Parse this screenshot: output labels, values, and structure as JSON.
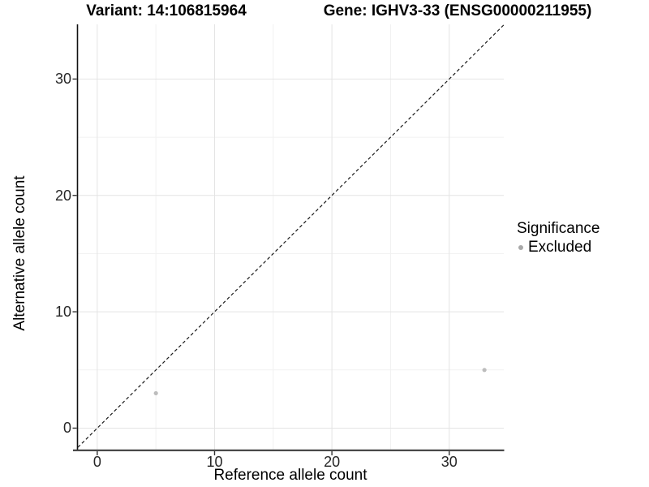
{
  "titles": {
    "left": "Variant: 14:106815964",
    "right": "Gene: IGHV3-33 (ENSG00000211955)"
  },
  "chart_data": {
    "type": "scatter",
    "xlabel": "Reference allele count",
    "ylabel": "Alternative allele count",
    "x_ticks": [
      0,
      10,
      20,
      30
    ],
    "y_ticks": [
      0,
      10,
      20,
      30
    ],
    "xlim": [
      -1.65,
      34.65
    ],
    "ylim": [
      -1.85,
      34.7
    ],
    "grid": "major+minor",
    "legend_position": "right-middle",
    "reference_line": {
      "kind": "identity_y_equals_x",
      "style": "dashed",
      "color": "#1a1a1a"
    },
    "series": [
      {
        "name": "Excluded",
        "color": "#bdbdbd",
        "points": [
          {
            "x": 5,
            "y": 3
          },
          {
            "x": 33,
            "y": 5
          }
        ]
      }
    ],
    "legend": {
      "title": "Significance",
      "items": [
        {
          "label": "Excluded",
          "key_color": "#a9a9a9"
        }
      ]
    }
  },
  "style": {
    "background": "#ffffff",
    "grid_major": "#e4e4e4",
    "grid_minor": "#f1f1f1",
    "axis_line_y": "#111111",
    "axis_line_x": "#3d3d3d",
    "tick_color": "#333333",
    "point_radius": 2.6
  }
}
